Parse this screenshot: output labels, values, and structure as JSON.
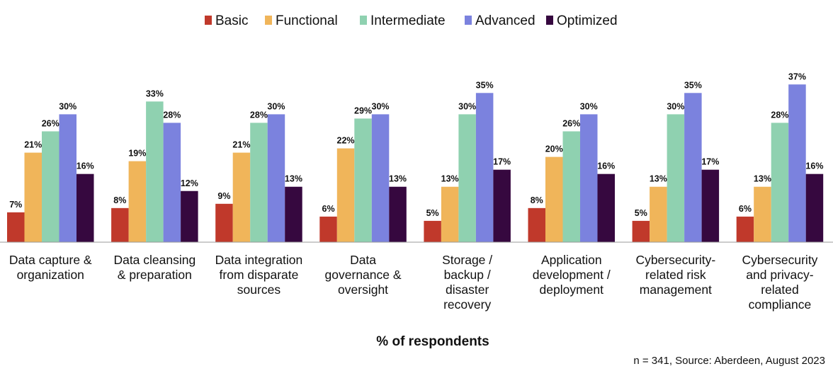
{
  "chart_data": {
    "type": "bar",
    "title": "",
    "xlabel": "% of respondents",
    "ylabel": "",
    "ylim": [
      0,
      40
    ],
    "grid": false,
    "legend_position": "top",
    "categories": [
      [
        "Data capture &",
        "organization"
      ],
      [
        "Data cleansing",
        "& preparation"
      ],
      [
        "Data integration",
        "from disparate",
        "sources"
      ],
      [
        "Data",
        "governance &",
        "oversight"
      ],
      [
        "Storage /",
        "backup /",
        "disaster",
        "recovery"
      ],
      [
        "Application",
        "development /",
        "deployment"
      ],
      [
        "Cybersecurity-",
        "related risk",
        "management"
      ],
      [
        "Cybersecurity",
        "and privacy-",
        "related",
        "compliance"
      ]
    ],
    "series": [
      {
        "name": "Basic",
        "color": "#c0392b",
        "values": [
          7,
          8,
          9,
          6,
          5,
          8,
          5,
          6
        ],
        "labels": [
          "7%",
          "8%",
          "9%",
          "6%",
          "5%",
          "8%",
          "5%",
          "6%"
        ]
      },
      {
        "name": "Functional",
        "color": "#f0b55a",
        "values": [
          21,
          19,
          21,
          22,
          13,
          20,
          13,
          13
        ],
        "labels": [
          "21%",
          "19%",
          "21%",
          "22%",
          "13%",
          "20%",
          "13%",
          "13%"
        ]
      },
      {
        "name": "Intermediate",
        "color": "#8fd1b0",
        "values": [
          26,
          33,
          28,
          29,
          30,
          26,
          30,
          28
        ],
        "labels": [
          "26%",
          "33%",
          "28%",
          "29%",
          "30%",
          "26%",
          "30%",
          "28%"
        ]
      },
      {
        "name": "Advanced",
        "color": "#7b82de",
        "values": [
          30,
          28,
          30,
          30,
          35,
          30,
          35,
          37
        ],
        "labels": [
          "30%",
          "28%",
          "30%",
          "30%",
          "35%",
          "30%",
          "35%",
          "37%"
        ]
      },
      {
        "name": "Optimized",
        "color": "#36083f",
        "values": [
          16,
          12,
          13,
          13,
          17,
          16,
          17,
          16
        ],
        "labels": [
          "16%",
          "12%",
          "13%",
          "13%",
          "17%",
          "16%",
          "17%",
          "16%"
        ]
      }
    ],
    "source_note": "n = 341, Source: Aberdeen, August 2023"
  }
}
